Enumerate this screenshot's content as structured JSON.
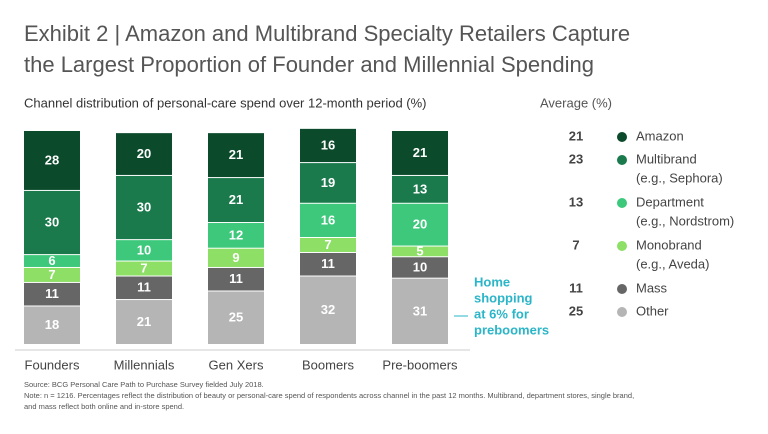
{
  "chart_data": {
    "type": "stacked-bar",
    "title": [
      "Exhibit 2 | Amazon and Multibrand Specialty Retailers Capture",
      "the Largest Proportion of Founder and Millennial Spending"
    ],
    "subtitle": "Channel distribution of personal-care spend over 12-month period (%)",
    "average_label": "Average (%)",
    "categories": [
      "Founders",
      "Millennials",
      "Gen Xers",
      "Boomers",
      "Pre-boomers"
    ],
    "series": [
      {
        "name": "Amazon",
        "color": "#0b4a2a",
        "average": 21,
        "values": [
          28,
          20,
          21,
          16,
          21
        ]
      },
      {
        "name": "Multibrand",
        "example": "(e.g., Sephora)",
        "color": "#1a7a4c",
        "average": 23,
        "values": [
          30,
          30,
          21,
          19,
          13
        ]
      },
      {
        "name": "Department",
        "example": "(e.g., Nordstrom)",
        "color": "#3dc87c",
        "average": 13,
        "values": [
          6,
          10,
          12,
          16,
          20
        ]
      },
      {
        "name": "Monobrand",
        "example": "(e.g., Aveda)",
        "color": "#8ddf66",
        "average": 7,
        "values": [
          7,
          7,
          9,
          7,
          5
        ]
      },
      {
        "name": "Mass",
        "color": "#666666",
        "average": 11,
        "values": [
          11,
          11,
          11,
          11,
          10
        ]
      },
      {
        "name": "Other",
        "color": "#b5b5b5",
        "average": 25,
        "values": [
          18,
          21,
          25,
          32,
          31
        ]
      }
    ],
    "annotation": [
      "Home",
      "shopping",
      "at 6% for",
      "preboomers"
    ],
    "footnotes": [
      "Source: BCG Personal Care Path to Purchase Survey fielded July 2018.",
      "Note: n = 1216. Percentages reflect the distribution of beauty or personal-care spend of respondents across channel in the past 12 months. Multibrand, department stores, single brand,",
      "and mass reflect both online and in-store spend."
    ]
  }
}
